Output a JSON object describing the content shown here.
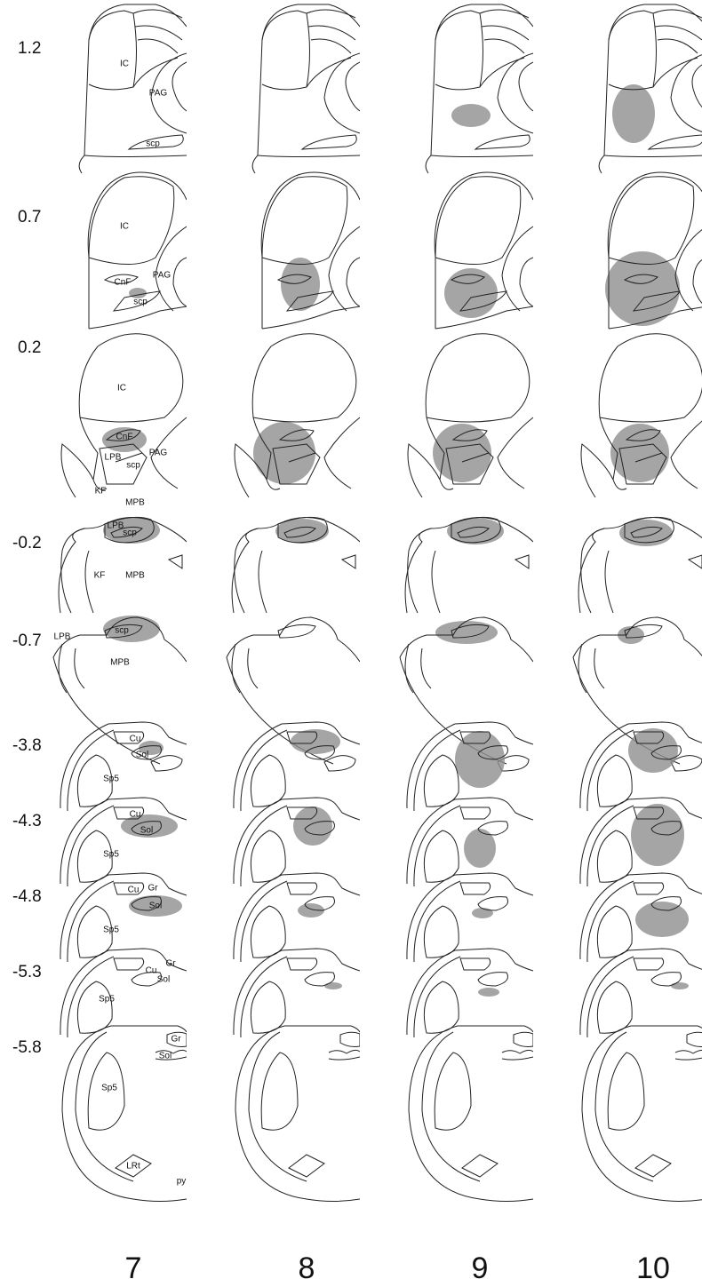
{
  "rows": [
    {
      "level": "1.2",
      "labels": [
        "IC",
        "PAG",
        "scp"
      ]
    },
    {
      "level": "0.7",
      "labels": [
        "IC",
        "CnF",
        "PAG",
        "scp"
      ]
    },
    {
      "level": "0.2",
      "labels": [
        "IC",
        "CnF",
        "LPB",
        "scp",
        "PAG",
        "KF",
        "MPB"
      ]
    },
    {
      "level": "-0.2",
      "labels": [
        "LPB",
        "scp",
        "KF",
        "MPB"
      ]
    },
    {
      "level": "-0.7",
      "labels": [
        "LPB",
        "scp",
        "MPB"
      ]
    },
    {
      "level": "-3.8",
      "labels": [
        "Cu",
        "Sol",
        "Sp5"
      ]
    },
    {
      "level": "-4.3",
      "labels": [
        "Cu",
        "Sol",
        "Sp5"
      ]
    },
    {
      "level": "-4.8",
      "labels": [
        "Cu",
        "Gr",
        "Sol",
        "Sp5"
      ]
    },
    {
      "level": "-5.3",
      "labels": [
        "Gr",
        "Cu",
        "Sol",
        "Sp5"
      ]
    },
    {
      "level": "-5.8",
      "labels": [
        "Gr",
        "Sol",
        "Sp5",
        "LRt",
        "py"
      ]
    }
  ],
  "columns": [
    "7",
    "8",
    "9",
    "10"
  ]
}
